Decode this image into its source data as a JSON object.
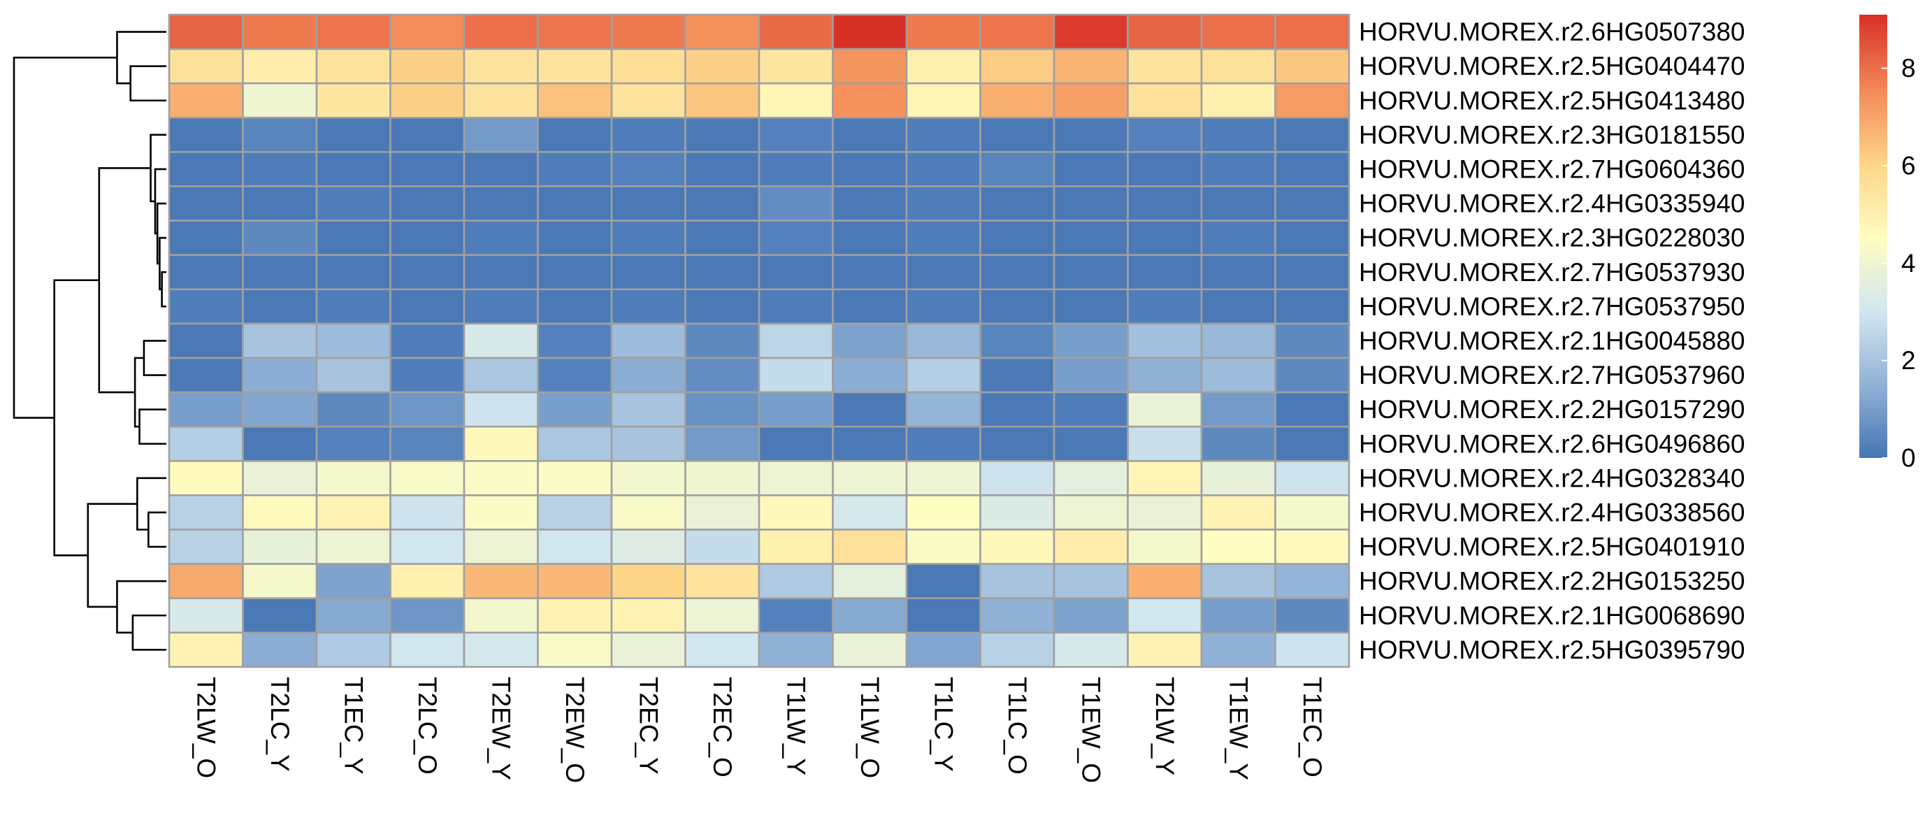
{
  "chart_data": {
    "type": "heatmap",
    "title": "",
    "xlabel": "",
    "ylabel": "",
    "columns": [
      "T2LW_O",
      "T2LC_Y",
      "T1EC_Y",
      "T2LC_O",
      "T2EW_Y",
      "T2EW_O",
      "T2EC_Y",
      "T2EC_O",
      "T1LW_Y",
      "T1LW_O",
      "T1LC_Y",
      "T1LC_O",
      "T1EW_O",
      "T2LW_Y",
      "T1EW_Y",
      "T1EC_O"
    ],
    "rows": [
      "HORVU.MOREX.r2.6HG0507380",
      "HORVU.MOREX.r2.5HG0404470",
      "HORVU.MOREX.r2.5HG0413480",
      "HORVU.MOREX.r2.3HG0181550",
      "HORVU.MOREX.r2.7HG0604360",
      "HORVU.MOREX.r2.4HG0335940",
      "HORVU.MOREX.r2.3HG0228030",
      "HORVU.MOREX.r2.7HG0537930",
      "HORVU.MOREX.r2.7HG0537950",
      "HORVU.MOREX.r2.1HG0045880",
      "HORVU.MOREX.r2.7HG0537960",
      "HORVU.MOREX.r2.2HG0157290",
      "HORVU.MOREX.r2.6HG0496860",
      "HORVU.MOREX.r2.4HG0328340",
      "HORVU.MOREX.r2.4HG0338560",
      "HORVU.MOREX.r2.5HG0401910",
      "HORVU.MOREX.r2.2HG0153250",
      "HORVU.MOREX.r2.1HG0068690",
      "HORVU.MOREX.r2.5HG0395790"
    ],
    "values": [
      [
        8.2,
        7.8,
        7.9,
        7.5,
        8.0,
        7.9,
        7.8,
        7.4,
        8.1,
        9.1,
        7.8,
        7.9,
        8.9,
        8.2,
        8.0,
        8.0
      ],
      [
        5.6,
        5.1,
        5.5,
        6.1,
        5.5,
        5.5,
        5.7,
        6.1,
        5.4,
        7.3,
        5.0,
        6.2,
        6.7,
        5.5,
        5.6,
        6.3
      ],
      [
        6.8,
        4.0,
        5.4,
        6.1,
        5.5,
        6.4,
        5.5,
        6.3,
        4.8,
        7.4,
        4.8,
        6.8,
        7.1,
        5.6,
        5.0,
        7.2
      ],
      [
        0.1,
        0.4,
        0.1,
        0.1,
        0.9,
        0.1,
        0.2,
        0.1,
        0.3,
        0.1,
        0.2,
        0.1,
        0.1,
        0.3,
        0.2,
        0.1
      ],
      [
        0.1,
        0.2,
        0.1,
        0.1,
        0.1,
        0.2,
        0.3,
        0.1,
        0.2,
        0.1,
        0.2,
        0.4,
        0.1,
        0.1,
        0.2,
        0.1
      ],
      [
        0.1,
        0.1,
        0.2,
        0.1,
        0.1,
        0.1,
        0.1,
        0.1,
        0.6,
        0.1,
        0.2,
        0.1,
        0.1,
        0.1,
        0.1,
        0.1
      ],
      [
        0.1,
        0.5,
        0.1,
        0.1,
        0.2,
        0.1,
        0.2,
        0.1,
        0.3,
        0.1,
        0.2,
        0.1,
        0.1,
        0.1,
        0.2,
        0.1
      ],
      [
        0.1,
        0.1,
        0.1,
        0.1,
        0.1,
        0.1,
        0.1,
        0.1,
        0.1,
        0.1,
        0.1,
        0.1,
        0.1,
        0.1,
        0.1,
        0.1
      ],
      [
        0.2,
        0.1,
        0.2,
        0.1,
        0.2,
        0.1,
        0.2,
        0.1,
        0.2,
        0.1,
        0.2,
        0.1,
        0.1,
        0.2,
        0.1,
        0.1
      ],
      [
        0.1,
        2.0,
        1.8,
        0.2,
        3.2,
        0.3,
        1.8,
        0.5,
        2.5,
        1.1,
        1.7,
        0.4,
        1.0,
        1.9,
        1.7,
        0.5
      ],
      [
        0.1,
        1.4,
        2.0,
        0.2,
        2.1,
        0.3,
        1.4,
        0.6,
        2.7,
        1.4,
        2.3,
        0.1,
        1.0,
        1.5,
        1.8,
        0.5
      ],
      [
        1.0,
        1.2,
        0.5,
        0.8,
        2.9,
        1.0,
        2.0,
        0.7,
        1.0,
        0.1,
        1.6,
        0.1,
        0.2,
        3.8,
        0.9,
        0.1
      ],
      [
        2.3,
        0.1,
        0.3,
        0.4,
        4.7,
        2.1,
        2.0,
        0.9,
        0.1,
        0.1,
        0.2,
        0.1,
        0.1,
        2.8,
        0.5,
        0.1
      ],
      [
        4.6,
        3.8,
        4.2,
        4.3,
        4.4,
        4.4,
        4.1,
        4.0,
        3.9,
        3.9,
        3.9,
        2.9,
        3.6,
        4.8,
        3.7,
        2.9
      ],
      [
        2.4,
        4.6,
        4.9,
        2.9,
        4.4,
        2.4,
        4.3,
        3.8,
        4.7,
        3.1,
        4.5,
        3.3,
        3.9,
        3.8,
        4.9,
        4.2
      ],
      [
        2.4,
        3.7,
        3.9,
        3.0,
        3.9,
        3.0,
        3.4,
        2.7,
        5.0,
        5.6,
        4.4,
        4.7,
        5.1,
        4.2,
        4.5,
        4.6
      ],
      [
        6.9,
        4.2,
        1.1,
        5.0,
        6.6,
        6.6,
        6.0,
        5.5,
        2.2,
        3.6,
        0.1,
        2.0,
        2.0,
        6.8,
        2.0,
        1.6
      ],
      [
        3.2,
        0.1,
        1.3,
        0.8,
        4.1,
        4.9,
        4.9,
        3.9,
        0.3,
        1.3,
        0.1,
        1.5,
        1.1,
        3.0,
        1.0,
        0.5
      ],
      [
        4.9,
        1.4,
        2.2,
        3.0,
        3.1,
        4.3,
        3.8,
        3.0,
        1.5,
        3.8,
        1.2,
        2.4,
        3.2,
        4.9,
        1.5,
        2.9
      ]
    ],
    "color_scale": {
      "min": 0,
      "max": 9.1,
      "stops": [
        {
          "value": 0,
          "color": "#4575b4"
        },
        {
          "value": 1.5,
          "color": "#91b2d6"
        },
        {
          "value": 3.0,
          "color": "#d2e6ef"
        },
        {
          "value": 4.5,
          "color": "#fefdc2"
        },
        {
          "value": 6.0,
          "color": "#fdd68a"
        },
        {
          "value": 7.5,
          "color": "#f38c5a"
        },
        {
          "value": 9.1,
          "color": "#d73027"
        }
      ]
    },
    "legend_ticks": [
      "0",
      "2",
      "4",
      "6",
      "8"
    ],
    "legend_tick_values": [
      0,
      2,
      4,
      6,
      8
    ],
    "legend_placement": "right",
    "row_dendrogram": {
      "merges": [
        [
          -8,
          -9,
          0.02
        ],
        [
          -7,
          1,
          0.03
        ],
        [
          -6,
          2,
          0.04
        ],
        [
          -5,
          3,
          0.05
        ],
        [
          -4,
          4,
          0.07
        ],
        [
          -10,
          -11,
          0.1
        ],
        [
          -12,
          -13,
          0.12
        ],
        [
          6,
          7,
          0.14
        ],
        [
          5,
          8,
          0.3
        ],
        [
          -15,
          -16,
          0.08
        ],
        [
          -14,
          10,
          0.13
        ],
        [
          -18,
          -19,
          0.15
        ],
        [
          -17,
          12,
          0.22
        ],
        [
          11,
          13,
          0.35
        ],
        [
          9,
          14,
          0.5
        ],
        [
          -2,
          -3,
          0.16
        ],
        [
          -1,
          16,
          0.22
        ],
        [
          15,
          17,
          0.68
        ]
      ]
    }
  }
}
